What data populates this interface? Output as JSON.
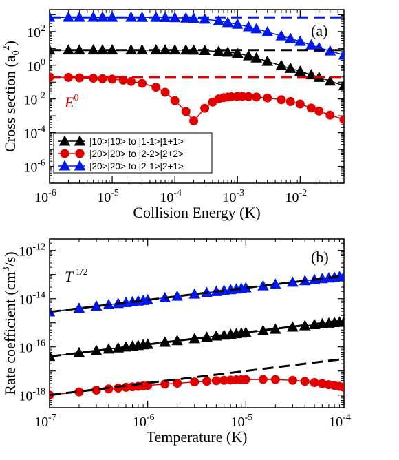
{
  "chart_data": [
    {
      "panel": "(a)",
      "type": "line",
      "xlabel_main": "Collision Energy (K)",
      "ylabel_main": "Cross section (a",
      "ylabel_sub": "0",
      "ylabel_sup": "2",
      "ylabel_close": ")",
      "xscale": "log",
      "yscale": "log",
      "xlim": [
        1e-06,
        0.05
      ],
      "ylim": [
        1e-07,
        2000
      ],
      "xtick_values": [
        1e-06,
        1e-05,
        0.0001,
        0.001,
        0.01
      ],
      "xtick_exponents": [
        "-6",
        "-5",
        "-4",
        "-3",
        "-2"
      ],
      "ytick_values": [
        1e-06,
        0.0001,
        0.01,
        1,
        100
      ],
      "ytick_exponents": [
        "-6",
        "-4",
        "-2",
        "0",
        "2"
      ],
      "tick_base": "10",
      "grid": false,
      "legend_position": "bottom-left",
      "annotation": {
        "text": "E",
        "sup": "0",
        "color": "#e00000"
      },
      "series": [
        {
          "name": "|10>|10> to |1-1>|1+1>",
          "color": "#000000",
          "marker": "triangle",
          "x": [
            1e-06,
            2e-06,
            3e-06,
            5e-06,
            7e-06,
            1e-05,
            2e-05,
            3e-05,
            5e-05,
            7e-05,
            0.0001,
            0.00015,
            0.0002,
            0.0003,
            0.0005,
            0.0007,
            0.001,
            0.0015,
            0.002,
            0.003,
            0.005,
            0.007,
            0.01,
            0.015,
            0.02,
            0.03,
            0.05
          ],
          "y": [
            8,
            8,
            8,
            8,
            8,
            8,
            8,
            8,
            8,
            8,
            8,
            7.9,
            7.8,
            7.4,
            6.6,
            5.9,
            5.1,
            3.6,
            2.7,
            1.7,
            0.95,
            0.65,
            0.44,
            0.27,
            0.19,
            0.115,
            0.06
          ]
        },
        {
          "name": "|20>|20> to |2-2>|2+2>",
          "color": "#e00000",
          "marker": "circle",
          "x": [
            1e-06,
            2e-06,
            3e-06,
            5e-06,
            7e-06,
            1e-05,
            1.5e-05,
            2e-05,
            3e-05,
            5e-05,
            7e-05,
            0.0001,
            0.00015,
            0.0002,
            0.0003,
            0.0004,
            0.0005,
            0.0006,
            0.0007,
            0.0008,
            0.001,
            0.0012,
            0.0015,
            0.002,
            0.003,
            0.005,
            0.007,
            0.01,
            0.015,
            0.02,
            0.03,
            0.05
          ],
          "y": [
            0.2,
            0.19,
            0.18,
            0.17,
            0.16,
            0.15,
            0.13,
            0.11,
            0.085,
            0.05,
            0.025,
            0.008,
            0.0018,
            0.0005,
            0.0028,
            0.0065,
            0.01,
            0.012,
            0.013,
            0.0135,
            0.014,
            0.0142,
            0.0138,
            0.013,
            0.0115,
            0.009,
            0.007,
            0.005,
            0.0029,
            0.0019,
            0.0011,
            0.0006
          ]
        },
        {
          "name": "|20>|20> to |2-1>|2+1>",
          "color": "#0018e8",
          "marker": "triangle",
          "x": [
            1e-06,
            2e-06,
            3e-06,
            5e-06,
            7e-06,
            1e-05,
            2e-05,
            3e-05,
            5e-05,
            7e-05,
            0.0001,
            0.00015,
            0.0002,
            0.0003,
            0.0005,
            0.0007,
            0.001,
            0.0015,
            0.002,
            0.003,
            0.005,
            0.007,
            0.01,
            0.015,
            0.02,
            0.03,
            0.05
          ],
          "y": [
            700,
            700,
            700,
            700,
            700,
            700,
            700,
            695,
            690,
            680,
            660,
            630,
            600,
            540,
            430,
            340,
            270,
            190,
            145,
            95,
            55,
            38,
            26,
            16,
            11,
            7,
            4
          ]
        },
        {
          "name": "",
          "color": "#000000",
          "style": "dashed",
          "x": [
            1e-06,
            0.05
          ],
          "y": [
            8,
            8
          ]
        },
        {
          "name": "",
          "color": "#e00000",
          "style": "dashed",
          "x": [
            1e-06,
            0.05
          ],
          "y": [
            0.2,
            0.2
          ]
        },
        {
          "name": "",
          "color": "#0018e8",
          "style": "dashed",
          "x": [
            1e-06,
            0.05
          ],
          "y": [
            700,
            700
          ]
        }
      ]
    },
    {
      "panel": "(b)",
      "type": "line",
      "xlabel_main": "Temperature (K)",
      "ylabel_main": "Rate coefficient (cm",
      "ylabel_sup": "3",
      "ylabel_close": "/s)",
      "xscale": "log",
      "yscale": "log",
      "xlim": [
        1e-07,
        0.0001
      ],
      "ylim": [
        3e-19,
        3e-12
      ],
      "xtick_values": [
        1e-07,
        1e-06,
        1e-05,
        0.0001
      ],
      "xtick_exponents": [
        "-7",
        "-6",
        "-5",
        "-4"
      ],
      "ytick_values": [
        1e-18,
        1e-16,
        1e-14,
        1e-12
      ],
      "ytick_exponents": [
        "-18",
        "-16",
        "-14",
        "-12"
      ],
      "tick_base": "10",
      "grid": false,
      "annotation": {
        "text": "T",
        "sup": "1/2",
        "color": "#000000"
      },
      "series": [
        {
          "name": "",
          "color": "#0018e8",
          "marker": "triangle",
          "x": [
            1e-07,
            2e-07,
            3e-07,
            4e-07,
            5e-07,
            6e-07,
            7e-07,
            8e-07,
            9e-07,
            1e-06,
            1.5e-06,
            2e-06,
            3e-06,
            4e-06,
            5e-06,
            6e-06,
            7e-06,
            8e-06,
            9e-06,
            1e-05,
            1.5e-05,
            2e-05,
            3e-05,
            4e-05,
            5e-05,
            6e-05,
            7e-05,
            8e-05,
            9e-05,
            0.0001
          ],
          "y": [
            2.8e-15,
            4e-15,
            4.9e-15,
            5.6e-15,
            6.3e-15,
            6.9e-15,
            7.4e-15,
            7.9e-15,
            8.4e-15,
            8.9e-15,
            1.09e-14,
            1.26e-14,
            1.54e-14,
            1.77e-14,
            1.98e-14,
            2.17e-14,
            2.34e-14,
            2.5e-14,
            2.65e-14,
            2.8e-14,
            3.4e-14,
            3.95e-14,
            4.8e-14,
            5.5e-14,
            6.1e-14,
            6.7e-14,
            7.2e-14,
            7.6e-14,
            8.1e-14,
            8.5e-14
          ]
        },
        {
          "name": "",
          "color": "#000000",
          "marker": "triangle",
          "x": [
            1e-07,
            2e-07,
            3e-07,
            4e-07,
            5e-07,
            6e-07,
            7e-07,
            8e-07,
            9e-07,
            1e-06,
            1.5e-06,
            2e-06,
            3e-06,
            4e-06,
            5e-06,
            6e-06,
            7e-06,
            8e-06,
            9e-06,
            1e-05,
            1.5e-05,
            2e-05,
            3e-05,
            4e-05,
            5e-05,
            6e-05,
            7e-05,
            8e-05,
            9e-05,
            0.0001
          ],
          "y": [
            4e-17,
            5.7e-17,
            7e-17,
            8.1e-17,
            9e-17,
            9.9e-17,
            1.07e-16,
            1.14e-16,
            1.21e-16,
            1.27e-16,
            1.55e-16,
            1.8e-16,
            2.18e-16,
            2.5e-16,
            2.8e-16,
            3.05e-16,
            3.3e-16,
            3.5e-16,
            3.7e-16,
            3.9e-16,
            4.7e-16,
            5.4e-16,
            6.6e-16,
            7.5e-16,
            8.3e-16,
            9e-16,
            9.6e-16,
            1.01e-15,
            1.06e-15,
            1.1e-15
          ]
        },
        {
          "name": "",
          "color": "#e00000",
          "marker": "circle",
          "x": [
            1e-07,
            2e-07,
            3e-07,
            4e-07,
            5e-07,
            6e-07,
            7e-07,
            8e-07,
            9e-07,
            1e-06,
            1.5e-06,
            2e-06,
            3e-06,
            4e-06,
            5e-06,
            6e-06,
            7e-06,
            8e-06,
            9e-06,
            1e-05,
            1.5e-05,
            2e-05,
            3e-05,
            4e-05,
            5e-05,
            6e-05,
            7e-05,
            8e-05,
            9e-05,
            0.0001
          ],
          "y": [
            1e-18,
            1.35e-18,
            1.6e-18,
            1.8e-18,
            1.95e-18,
            2.1e-18,
            2.2e-18,
            2.3e-18,
            2.4e-18,
            2.5e-18,
            2.85e-18,
            3.1e-18,
            3.5e-18,
            3.75e-18,
            3.95e-18,
            4.1e-18,
            4.2e-18,
            4.3e-18,
            4.35e-18,
            4.4e-18,
            4.45e-18,
            4.4e-18,
            4.1e-18,
            3.7e-18,
            3.3e-18,
            3e-18,
            2.7e-18,
            2.5e-18,
            2.3e-18,
            2.1e-18
          ]
        },
        {
          "name": "",
          "color": "#000000",
          "style": "dashed",
          "x": [
            1e-07,
            0.0001
          ],
          "y": [
            2.8e-15,
            8.85e-14
          ]
        },
        {
          "name": "",
          "color": "#000000",
          "style": "dashed",
          "x": [
            1e-07,
            0.0001
          ],
          "y": [
            4e-17,
            1.26e-15
          ]
        },
        {
          "name": "",
          "color": "#000000",
          "style": "dashed",
          "x": [
            1e-07,
            0.0001
          ],
          "y": [
            1e-18,
            3.16e-17
          ]
        }
      ]
    }
  ]
}
